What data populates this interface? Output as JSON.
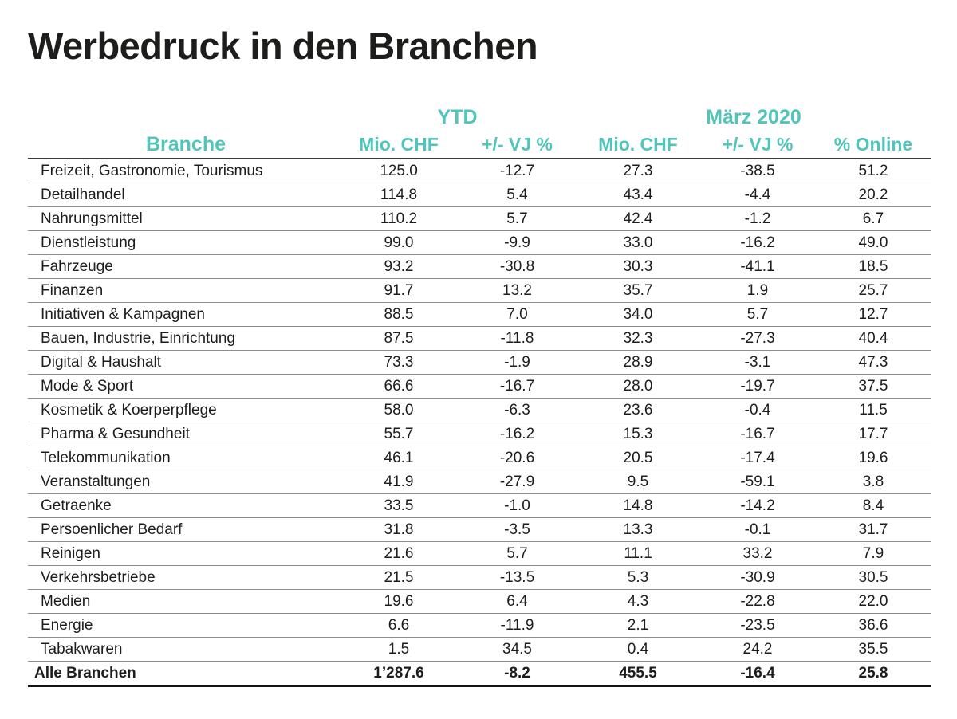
{
  "page": {
    "title": "Werbedruck in den Branchen"
  },
  "colors": {
    "accent_teal": "#50c5ba",
    "text_dark": "#1d1d1b",
    "row_line": "#8c8c8c",
    "header_line": "#3a3a3a",
    "total_line": "#161616"
  },
  "table": {
    "branche_label": "Branche",
    "group_ytd": "YTD",
    "group_maerz": "März 2020",
    "sub_headers": [
      "Mio. CHF",
      "+/- VJ %",
      "Mio. CHF",
      "+/- VJ %",
      "% Online"
    ]
  },
  "chart_data": {
    "type": "table",
    "title": "Werbedruck in den Branchen",
    "column_groups": [
      "",
      "YTD",
      "YTD",
      "März 2020",
      "März 2020",
      "März 2020"
    ],
    "columns": [
      "Branche",
      "YTD Mio. CHF",
      "YTD +/- VJ %",
      "März 2020 Mio. CHF",
      "März 2020 +/- VJ %",
      "März 2020 % Online"
    ],
    "rows": [
      [
        "Freizeit, Gastronomie, Tourismus",
        "125.0",
        "-12.7",
        "27.3",
        "-38.5",
        "51.2"
      ],
      [
        "Detailhandel",
        "114.8",
        "5.4",
        "43.4",
        "-4.4",
        "20.2"
      ],
      [
        "Nahrungsmittel",
        "110.2",
        "5.7",
        "42.4",
        "-1.2",
        "6.7"
      ],
      [
        "Dienstleistung",
        "99.0",
        "-9.9",
        "33.0",
        "-16.2",
        "49.0"
      ],
      [
        "Fahrzeuge",
        "93.2",
        "-30.8",
        "30.3",
        "-41.1",
        "18.5"
      ],
      [
        "Finanzen",
        "91.7",
        "13.2",
        "35.7",
        "1.9",
        "25.7"
      ],
      [
        "Initiativen & Kampagnen",
        "88.5",
        "7.0",
        "34.0",
        "5.7",
        "12.7"
      ],
      [
        "Bauen, Industrie, Einrichtung",
        "87.5",
        "-11.8",
        "32.3",
        "-27.3",
        "40.4"
      ],
      [
        "Digital & Haushalt",
        "73.3",
        "-1.9",
        "28.9",
        "-3.1",
        "47.3"
      ],
      [
        "Mode & Sport",
        "66.6",
        "-16.7",
        "28.0",
        "-19.7",
        "37.5"
      ],
      [
        "Kosmetik & Koerperpflege",
        "58.0",
        "-6.3",
        "23.6",
        "-0.4",
        "11.5"
      ],
      [
        "Pharma & Gesundheit",
        "55.7",
        "-16.2",
        "15.3",
        "-16.7",
        "17.7"
      ],
      [
        "Telekommunikation",
        "46.1",
        "-20.6",
        "20.5",
        "-17.4",
        "19.6"
      ],
      [
        "Veranstaltungen",
        "41.9",
        "-27.9",
        "9.5",
        "-59.1",
        "3.8"
      ],
      [
        "Getraenke",
        "33.5",
        "-1.0",
        "14.8",
        "-14.2",
        "8.4"
      ],
      [
        "Persoenlicher Bedarf",
        "31.8",
        "-3.5",
        "13.3",
        "-0.1",
        "31.7"
      ],
      [
        "Reinigen",
        "21.6",
        "5.7",
        "11.1",
        "33.2",
        "7.9"
      ],
      [
        "Verkehrsbetriebe",
        "21.5",
        "-13.5",
        "5.3",
        "-30.9",
        "30.5"
      ],
      [
        "Medien",
        "19.6",
        "6.4",
        "4.3",
        "-22.8",
        "22.0"
      ],
      [
        "Energie",
        "6.6",
        "-11.9",
        "2.1",
        "-23.5",
        "36.6"
      ],
      [
        "Tabakwaren",
        "1.5",
        "34.5",
        "0.4",
        "24.2",
        "35.5"
      ]
    ],
    "total_row": [
      "Alle Branchen",
      "1’287.6",
      "-8.2",
      "455.5",
      "-16.4",
      "25.8"
    ]
  }
}
